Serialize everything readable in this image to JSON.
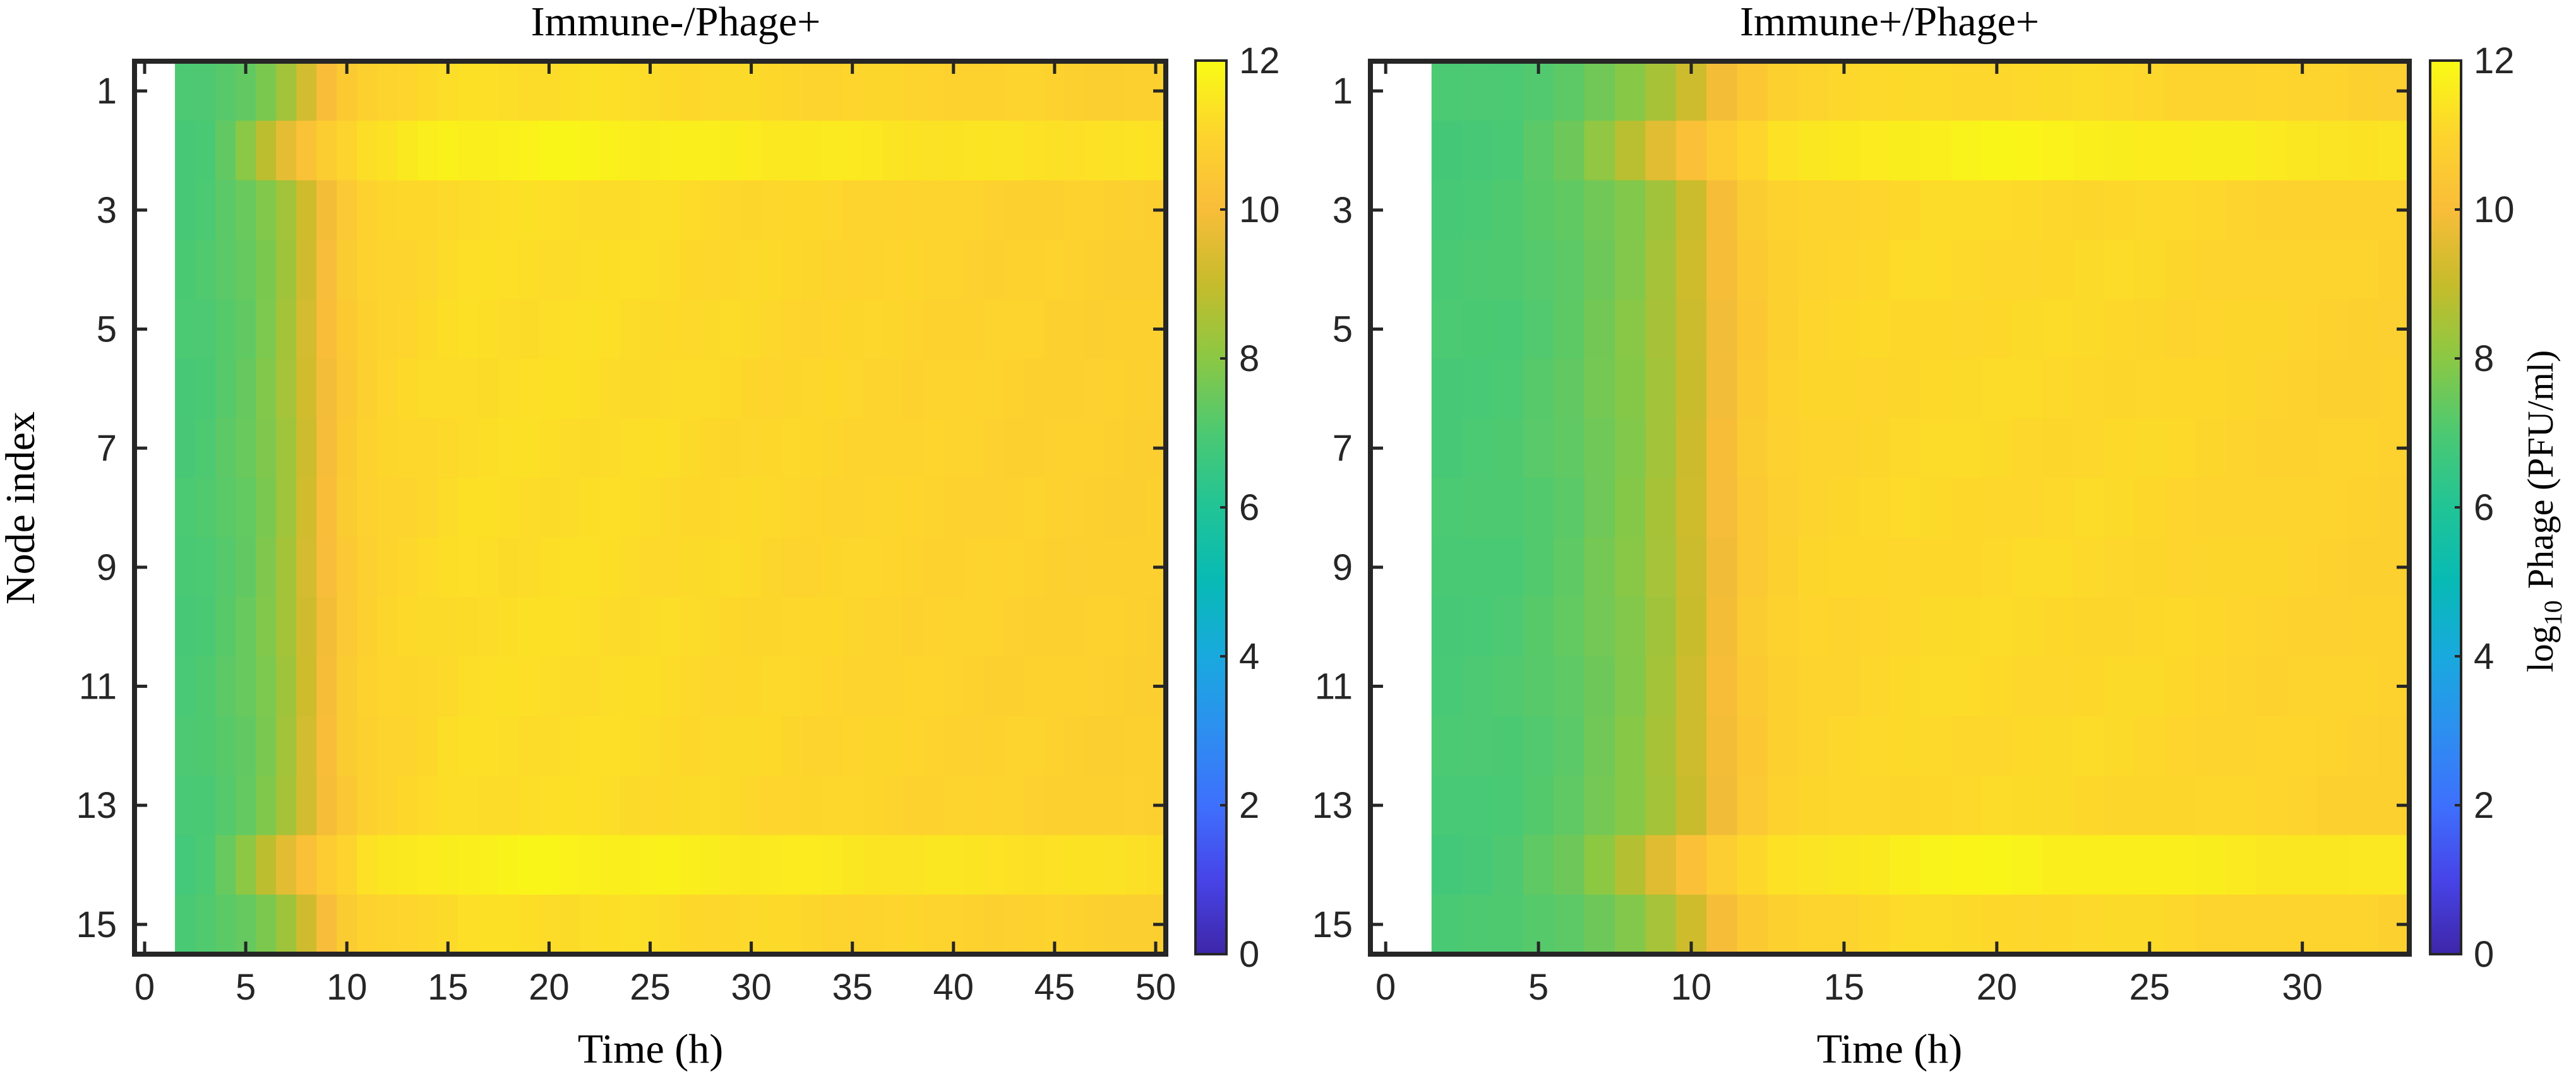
{
  "chart_data": [
    {
      "type": "heatmap",
      "title": "Immune-/Phage+",
      "xlabel": "Time (h)",
      "ylabel": "Node index",
      "xticks": [
        "0",
        "5",
        "10",
        "15",
        "20",
        "25",
        "30",
        "35",
        "40",
        "45",
        "50"
      ],
      "yticks": [
        "1",
        "3",
        "5",
        "7",
        "9",
        "11",
        "13",
        "15"
      ],
      "xlim": [
        -0.5,
        50.5
      ],
      "ylim": [
        0.5,
        15.5
      ],
      "clim": [
        0,
        12
      ],
      "t_start": 1.5,
      "t_step": 1,
      "n_steps": 49,
      "nodes": 15,
      "profile": {
        "default": [
          [
            1.5,
            6.9
          ],
          [
            3.0,
            7.0
          ],
          [
            5.0,
            7.4
          ],
          [
            6.5,
            8.0
          ],
          [
            7.5,
            8.8
          ],
          [
            8.5,
            9.6
          ],
          [
            9.5,
            10.3
          ],
          [
            10.5,
            10.8
          ],
          [
            12.0,
            11.0
          ],
          [
            16.0,
            11.25
          ],
          [
            22.0,
            11.25
          ],
          [
            30.0,
            11.1
          ],
          [
            40.0,
            10.95
          ],
          [
            50.5,
            10.8
          ]
        ],
        "high": [
          [
            1.5,
            6.8
          ],
          [
            3.0,
            7.0
          ],
          [
            4.5,
            7.6
          ],
          [
            5.5,
            8.4
          ],
          [
            6.5,
            9.2
          ],
          [
            7.5,
            9.9
          ],
          [
            8.5,
            10.5
          ],
          [
            9.5,
            10.9
          ],
          [
            11.0,
            11.3
          ],
          [
            15.0,
            11.7
          ],
          [
            20.0,
            11.8
          ],
          [
            30.0,
            11.6
          ],
          [
            40.0,
            11.4
          ],
          [
            50.5,
            11.3
          ]
        ]
      },
      "high_rows": [
        2,
        14
      ]
    },
    {
      "type": "heatmap",
      "title": "Immune+/Phage+",
      "xlabel": "Time (h)",
      "ylabel": "",
      "xticks": [
        "0",
        "5",
        "10",
        "15",
        "20",
        "25",
        "30"
      ],
      "yticks": [
        "1",
        "3",
        "5",
        "7",
        "9",
        "11",
        "13",
        "15"
      ],
      "xlim": [
        -0.5,
        33.5
      ],
      "ylim": [
        0.5,
        15.5
      ],
      "clim": [
        0,
        12
      ],
      "t_start": 1.5,
      "t_step": 1,
      "n_steps": 32,
      "nodes": 15,
      "profile": {
        "default": [
          [
            1.5,
            6.9
          ],
          [
            4.0,
            7.0
          ],
          [
            6.0,
            7.3
          ],
          [
            8.0,
            7.9
          ],
          [
            9.5,
            8.7
          ],
          [
            10.5,
            9.5
          ],
          [
            11.5,
            10.3
          ],
          [
            12.5,
            10.8
          ],
          [
            14.0,
            11.0
          ],
          [
            18.0,
            11.15
          ],
          [
            25.0,
            11.1
          ],
          [
            33.5,
            10.85
          ]
        ],
        "high": [
          [
            1.5,
            6.8
          ],
          [
            4.0,
            7.0
          ],
          [
            6.0,
            7.5
          ],
          [
            7.5,
            8.3
          ],
          [
            8.5,
            9.2
          ],
          [
            9.5,
            9.9
          ],
          [
            10.5,
            10.5
          ],
          [
            11.5,
            10.9
          ],
          [
            13.0,
            11.3
          ],
          [
            17.0,
            11.7
          ],
          [
            20.0,
            11.8
          ],
          [
            27.0,
            11.6
          ],
          [
            33.5,
            11.4
          ]
        ]
      },
      "high_rows": [
        2,
        14
      ]
    }
  ],
  "colorbar": {
    "ticks": [
      "0",
      "2",
      "4",
      "6",
      "8",
      "10",
      "12"
    ],
    "label_prefix": "log",
    "label_sub": "10",
    "label_rest": "Phage (PFU/ml)"
  },
  "colormap_stops": [
    "#3e26a8",
    "#4744e8",
    "#3e70fd",
    "#2d8ff0",
    "#19a9de",
    "#07bab5",
    "#21c496",
    "#4cc972",
    "#8bc844",
    "#c6bc2b",
    "#f9bd3a",
    "#fdd42d",
    "#f9fb15"
  ]
}
